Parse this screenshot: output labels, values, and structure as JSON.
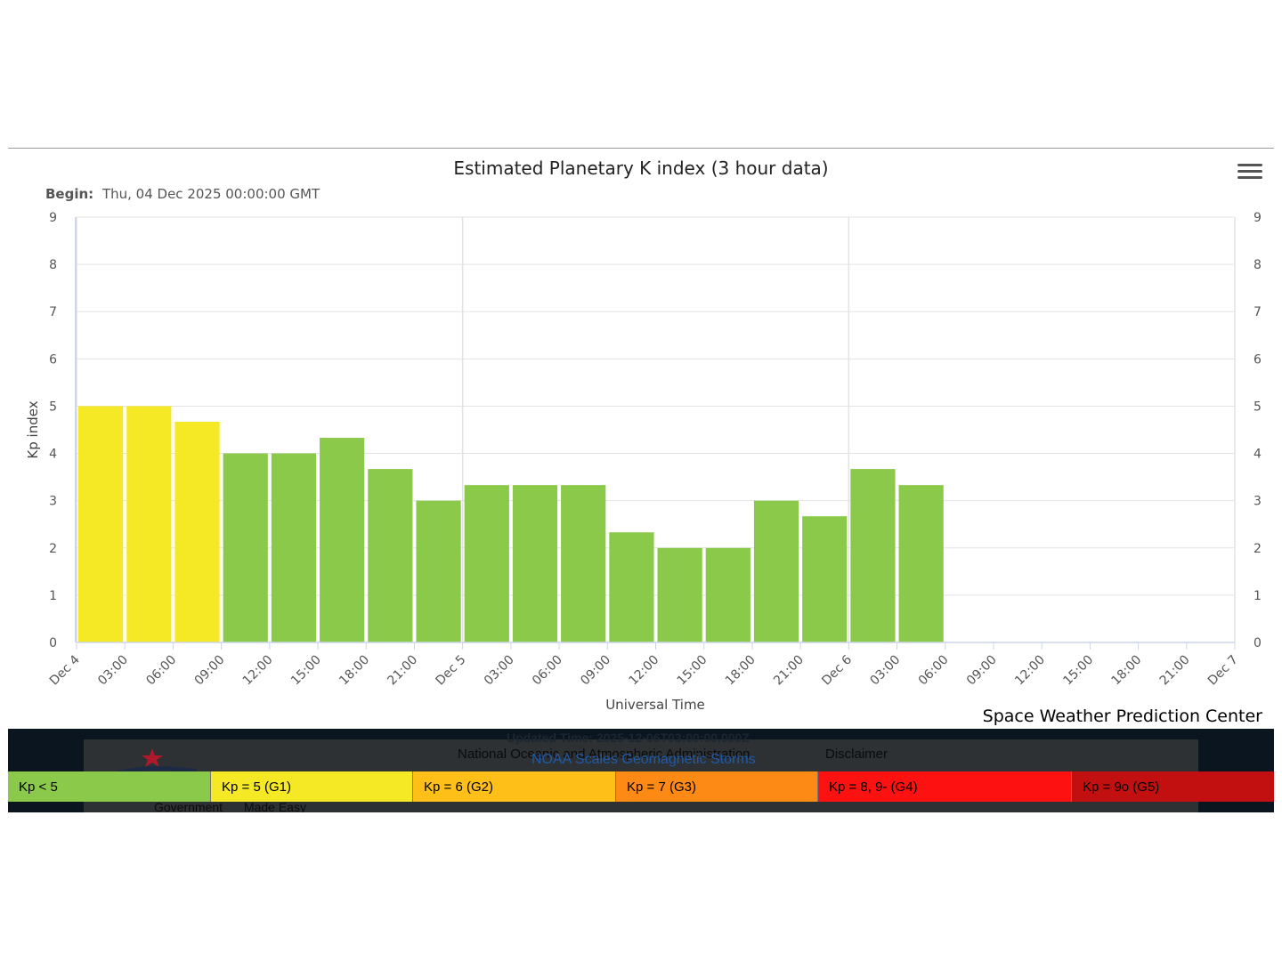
{
  "chart_data": {
    "type": "bar",
    "title": "Estimated Planetary K index (3 hour data)",
    "subtitle_label": "Begin:",
    "subtitle_value": "Thu, 04 Dec 2025 00:00:00 GMT",
    "xlabel": "Universal Time",
    "ylabel": "Kp index",
    "ylim": [
      0,
      9
    ],
    "yticks": [
      0,
      1,
      2,
      3,
      4,
      5,
      6,
      7,
      8,
      9
    ],
    "x_tick_labels": [
      "Dec 4",
      "03:00",
      "06:00",
      "09:00",
      "12:00",
      "15:00",
      "18:00",
      "21:00",
      "Dec 5",
      "03:00",
      "06:00",
      "09:00",
      "12:00",
      "15:00",
      "18:00",
      "21:00",
      "Dec 6",
      "03:00",
      "06:00",
      "09:00",
      "12:00",
      "15:00",
      "18:00",
      "21:00",
      "Dec 7"
    ],
    "bar_values": [
      5,
      5,
      4.67,
      4,
      4,
      4.33,
      3.67,
      3,
      3.33,
      3.33,
      3.33,
      2.33,
      2,
      2,
      3,
      2.67,
      3.67,
      3.33
    ],
    "bar_colors": [
      "#f5e925",
      "#f5e925",
      "#f5e925",
      "#8bc94a",
      "#8bc94a",
      "#8bc94a",
      "#8bc94a",
      "#8bc94a",
      "#8bc94a",
      "#8bc94a",
      "#8bc94a",
      "#8bc94a",
      "#8bc94a",
      "#8bc94a",
      "#8bc94a",
      "#8bc94a",
      "#8bc94a",
      "#8bc94a"
    ],
    "grid": true,
    "right_axis": true
  },
  "credit": "Space Weather Prediction Center",
  "footer": {
    "updated": "Updated Time: 2025-12-06T03:00:00.000Z",
    "noaa": "National Oceanic and Atmospheric Administration",
    "disclaimer": "Disclaimer",
    "scales_link": "NOAA Scales Geomagnetic Storms",
    "gov_left": "Government",
    "gov_right": "Made Easy"
  },
  "legend": [
    {
      "label": "Kp < 5",
      "color": "#8bc94a"
    },
    {
      "label": "Kp = 5 (G1)",
      "color": "#f5e925"
    },
    {
      "label": "Kp = 6 (G2)",
      "color": "#fdbf18"
    },
    {
      "label": "Kp = 7 (G3)",
      "color": "#fe8a16"
    },
    {
      "label": "Kp = 8, 9- (G4)",
      "color": "#fe1111"
    },
    {
      "label": "Kp = 9o (G5)",
      "color": "#c20f0f"
    }
  ]
}
